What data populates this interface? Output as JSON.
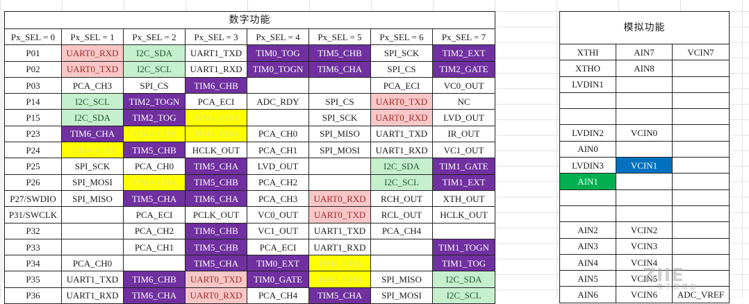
{
  "digital": {
    "title": "数字功能",
    "headers": [
      "Px_SEL = 0",
      "Px_SEL = 1",
      "Px_SEL = 2",
      "Px_SEL = 3",
      "Px_SEL = 4",
      "Px_SEL = 5",
      "Px_SEL = 6",
      "Px_SEL = 7"
    ],
    "rows": [
      {
        "cells": [
          "P01",
          "UART0_RXD",
          "I2C_SDA",
          "UART1_TXD",
          "TIM0_TOG",
          "TIM5_CHB",
          "SPI_SCK",
          "TIM2_EXT"
        ],
        "colors": [
          "",
          "#f9c7c7",
          "#c6efce",
          "",
          "#7030a0",
          "#7030a0",
          "",
          "#7030a0"
        ]
      },
      {
        "cells": [
          "P02",
          "UART0_TXD",
          "I2C_SCL",
          "UART1_RXD",
          "TIM0_TOGN",
          "TIM6_CHA",
          "SPI_CS",
          "TIM2_GATE"
        ],
        "colors": [
          "",
          "#f9c7c7",
          "#c6efce",
          "",
          "#7030a0",
          "#7030a0",
          "",
          "#7030a0"
        ]
      },
      {
        "cells": [
          "P03",
          "PCA_CH3",
          "SPI_CS",
          "TIM6_CHB",
          "",
          "",
          "PCA_ECI",
          "VC0_OUT"
        ],
        "colors": [
          "",
          "",
          "",
          "#7030a0",
          "",
          "",
          "",
          ""
        ]
      },
      {
        "cells": [
          "P14",
          "I2C_SCL",
          "TIM2_TOGN",
          "PCA_ECI",
          "ADC_RDY",
          "SPI_CS",
          "UART0_TXD",
          "NC"
        ],
        "colors": [
          "",
          "#c6efce",
          "#7030a0",
          "",
          "",
          "",
          "#f9c7c7",
          ""
        ]
      },
      {
        "cells": [
          "P15",
          "I2C_SDA",
          "TIM2_TOG",
          "TIM4_CHB",
          "",
          "SPI_SCK",
          "UART0_RXD",
          "LVD_OUT"
        ],
        "colors": [
          "",
          "#c6efce",
          "#7030a0",
          "#ffff00",
          "",
          "",
          "#f9c7c7",
          ""
        ]
      },
      {
        "cells": [
          "P23",
          "TIM6_CHA",
          "TIM4_CHB",
          "TIM4_CHA",
          "PCA_CH0",
          "SPI_MISO",
          "UART1_TXD",
          "IR_OUT"
        ],
        "colors": [
          "",
          "#7030a0",
          "#ffff00",
          "#ffff00",
          "",
          "",
          "",
          ""
        ]
      },
      {
        "cells": [
          "P24",
          "TIM4_CHB",
          "TIM5_CHB",
          "HCLK_OUT",
          "PCA_CH1",
          "SPI_MOSI",
          "UART1_RXD",
          "VC1_OUT"
        ],
        "colors": [
          "",
          "#ffff00",
          "#7030a0",
          "",
          "",
          "",
          "",
          ""
        ]
      },
      {
        "cells": [
          "P25",
          "SPI_SCK",
          "PCA_CH0",
          "TIM5_CHA",
          "LVD_OUT",
          "",
          "I2C_SDA",
          "TIM1_GATE"
        ],
        "colors": [
          "",
          "",
          "",
          "#7030a0",
          "",
          "",
          "#c6efce",
          "#7030a0"
        ]
      },
      {
        "cells": [
          "P26",
          "SPI_MOSI",
          "TIM4_CHA",
          "TIM5_CHB",
          "PCA_CH2",
          "",
          "I2C_SCL",
          "TIM1_EXT"
        ],
        "colors": [
          "",
          "",
          "#ffff00",
          "#7030a0",
          "",
          "",
          "#c6efce",
          "#7030a0"
        ]
      },
      {
        "cells": [
          "P27/SWDIO",
          "SPI_MISO",
          "TIM5_CHA",
          "TIM6_CHA",
          "PCA_CH3",
          "UART0_RXD",
          "RCH_OUT",
          "XTH_OUT"
        ],
        "colors": [
          "",
          "",
          "#7030a0",
          "#7030a0",
          "",
          "#f9c7c7",
          "",
          ""
        ]
      },
      {
        "cells": [
          "P31/SWCLK",
          "",
          "PCA_ECI",
          "PCLK_OUT",
          "VC0_OUT",
          "UART0_TXD",
          "RCL_OUT",
          "HCLK_OUT"
        ],
        "colors": [
          "",
          "",
          "",
          "",
          "",
          "#f9c7c7",
          "",
          ""
        ]
      },
      {
        "cells": [
          "P32",
          "",
          "PCA_CH2",
          "TIM6_CHB",
          "VC1_OUT",
          "UART1_TXD",
          "PCA_CH4",
          ""
        ],
        "colors": [
          "",
          "",
          "",
          "#7030a0",
          "",
          "",
          "",
          ""
        ]
      },
      {
        "cells": [
          "P33",
          "",
          "PCA_CH1",
          "TIM5_CHB",
          "PCA_ECI",
          "UART1_RXD",
          "",
          "TIM1_TOGN"
        ],
        "colors": [
          "",
          "",
          "",
          "#7030a0",
          "",
          "",
          "",
          "#7030a0"
        ]
      },
      {
        "cells": [
          "P34",
          "PCA_CH0",
          "",
          "TIM5_CHA",
          "TIM0_EXT",
          "TIM4_CHA",
          "",
          "TIM1_TOG"
        ],
        "colors": [
          "",
          "",
          "",
          "#7030a0",
          "#7030a0",
          "#ffff00",
          "",
          "#7030a0"
        ]
      },
      {
        "cells": [
          "P35",
          "UART1_TXD",
          "TIM6_CHB",
          "UART0_TXD",
          "TIM0_GATE",
          "TIM4_CHB",
          "SPI_MISO",
          "I2C_SDA"
        ],
        "colors": [
          "",
          "",
          "#7030a0",
          "#f9c7c7",
          "#7030a0",
          "#ffff00",
          "",
          "#c6efce"
        ]
      },
      {
        "cells": [
          "P36",
          "UART1_RXD",
          "TIM6_CHA",
          "UART0_RXD",
          "PCA_CH4",
          "TIM5_CHA",
          "SPI_MOSI",
          "I2C_SCL"
        ],
        "colors": [
          "",
          "",
          "#7030a0",
          "#f9c7c7",
          "",
          "#7030a0",
          "",
          "#c6efce"
        ]
      }
    ]
  },
  "analog": {
    "title": "模拟功能",
    "rows": [
      {
        "cells": [
          "XTHI",
          "AIN7",
          "VCIN7"
        ],
        "colors": [
          "",
          "",
          ""
        ]
      },
      {
        "cells": [
          "XTHO",
          "AIN8",
          ""
        ],
        "colors": [
          "",
          "",
          ""
        ]
      },
      {
        "cells": [
          "LVDIN1",
          "",
          ""
        ],
        "colors": [
          "",
          "",
          ""
        ]
      },
      {
        "cells": [
          "",
          "",
          ""
        ],
        "colors": [
          "",
          "",
          ""
        ]
      },
      {
        "cells": [
          "",
          "",
          ""
        ],
        "colors": [
          "",
          "",
          ""
        ]
      },
      {
        "cells": [
          "LVDIN2",
          "VCIN0",
          ""
        ],
        "colors": [
          "",
          "",
          ""
        ]
      },
      {
        "cells": [
          "AIN0",
          "",
          ""
        ],
        "colors": [
          "",
          "",
          ""
        ]
      },
      {
        "cells": [
          "LVDIN3",
          "VCIN1",
          ""
        ],
        "colors": [
          "",
          "#0070c0",
          ""
        ]
      },
      {
        "cells": [
          "AIN1",
          "",
          ""
        ],
        "colors": [
          "#00b050",
          "",
          ""
        ]
      },
      {
        "cells": [
          "",
          "",
          ""
        ],
        "colors": [
          "",
          "",
          ""
        ]
      },
      {
        "cells": [
          "",
          "",
          ""
        ],
        "colors": [
          "",
          "",
          ""
        ]
      },
      {
        "cells": [
          "AIN2",
          "VCIN2",
          ""
        ],
        "colors": [
          "",
          "",
          ""
        ]
      },
      {
        "cells": [
          "AIN3",
          "VCIN3",
          ""
        ],
        "colors": [
          "",
          "",
          ""
        ]
      },
      {
        "cells": [
          "AIN4",
          "VCIN4",
          ""
        ],
        "colors": [
          "",
          "",
          ""
        ]
      },
      {
        "cells": [
          "AIN5",
          "VCIN5",
          ""
        ],
        "colors": [
          "",
          "",
          ""
        ]
      },
      {
        "cells": [
          "AIN6",
          "VCIN6",
          "ADC_VREF"
        ],
        "colors": [
          "",
          "",
          ""
        ]
      }
    ]
  },
  "watermark": {
    "text": "ZIIE",
    "sub": "电子发烧友"
  }
}
